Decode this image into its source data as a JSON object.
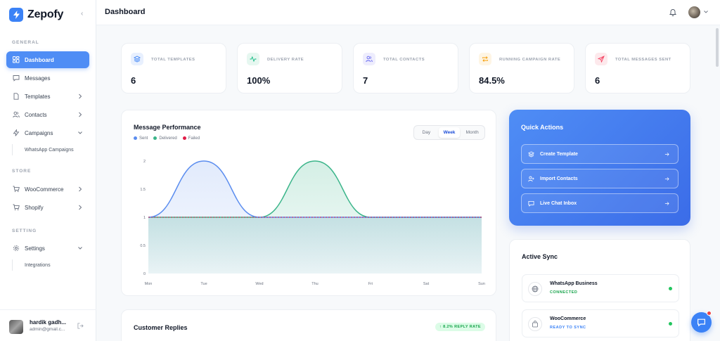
{
  "brand": {
    "name": "Zepofy"
  },
  "sidebar": {
    "sections": {
      "general": "GENERAL",
      "store": "STORE",
      "setting": "SETTING"
    },
    "items": [
      {
        "label": "Dashboard"
      },
      {
        "label": "Messages"
      },
      {
        "label": "Templates"
      },
      {
        "label": "Contacts"
      },
      {
        "label": "Campaigns"
      },
      {
        "label": "WhatsApp Campaigns"
      },
      {
        "label": "WooCommerce"
      },
      {
        "label": "Shopify"
      },
      {
        "label": "Settings"
      },
      {
        "label": "Integrations"
      }
    ],
    "user": {
      "name": "hardik gadh...",
      "email": "admin@gmail.c..."
    }
  },
  "header": {
    "title": "Dashboard"
  },
  "stats": [
    {
      "label": "TOTAL TEMPLATES",
      "value": "6",
      "icon": "layers-icon",
      "color": "#3b82f6",
      "bg": "#e8f0fe"
    },
    {
      "label": "DELIVERY RATE",
      "value": "100%",
      "icon": "activity-icon",
      "color": "#10b981",
      "bg": "#e6f7f0"
    },
    {
      "label": "TOTAL CONTACTS",
      "value": "7",
      "icon": "users-icon",
      "color": "#6366f1",
      "bg": "#eeedfd"
    },
    {
      "label": "RUNNING CAMPAIGN RATE",
      "value": "84.5%",
      "icon": "repeat-icon",
      "color": "#f59e0b",
      "bg": "#fef5e4"
    },
    {
      "label": "TOTAL MESSAGES SENT",
      "value": "6",
      "icon": "send-icon",
      "color": "#f43f5e",
      "bg": "#fde9ec"
    }
  ],
  "performance": {
    "title": "Message Performance",
    "tabs": [
      "Day",
      "Week",
      "Month"
    ],
    "active_tab": "Week"
  },
  "chart_data": {
    "type": "area",
    "title": "Message Performance",
    "categories": [
      "Mon",
      "Tue",
      "Wed",
      "Thu",
      "Fri",
      "Sat",
      "Sun"
    ],
    "yticks": [
      "2",
      "1.5",
      "1",
      "0.5",
      "0"
    ],
    "ylim": [
      0,
      2
    ],
    "series": [
      {
        "name": "Sent",
        "color": "#5b8def",
        "values": [
          1,
          2,
          1,
          1,
          1,
          1,
          1
        ]
      },
      {
        "name": "Delivered",
        "color": "#3bb58a",
        "values": [
          1,
          1,
          1,
          2,
          1,
          1,
          1
        ]
      },
      {
        "name": "Failed",
        "color": "#e11d48",
        "values": [
          1,
          1,
          1,
          1,
          1,
          1,
          1
        ]
      }
    ],
    "grid": false,
    "legend": "top-left"
  },
  "quick_actions": {
    "title": "Quick Actions",
    "buttons": [
      {
        "label": "Create Template",
        "icon": "layers-icon"
      },
      {
        "label": "Import Contacts",
        "icon": "user-plus-icon"
      },
      {
        "label": "Live Chat Inbox",
        "icon": "chat-icon"
      }
    ]
  },
  "active_sync": {
    "title": "Active Sync",
    "items": [
      {
        "name": "WhatsApp Business",
        "status": "CONNECTED",
        "status_color": "#16a34a",
        "icon": "globe-icon"
      },
      {
        "name": "WooCommerce",
        "status": "READY TO SYNC",
        "status_color": "#3b82f6",
        "icon": "bag-icon"
      }
    ]
  },
  "replies": {
    "title": "Customer Replies",
    "badge": "↑ 8.2% REPLY RATE"
  }
}
